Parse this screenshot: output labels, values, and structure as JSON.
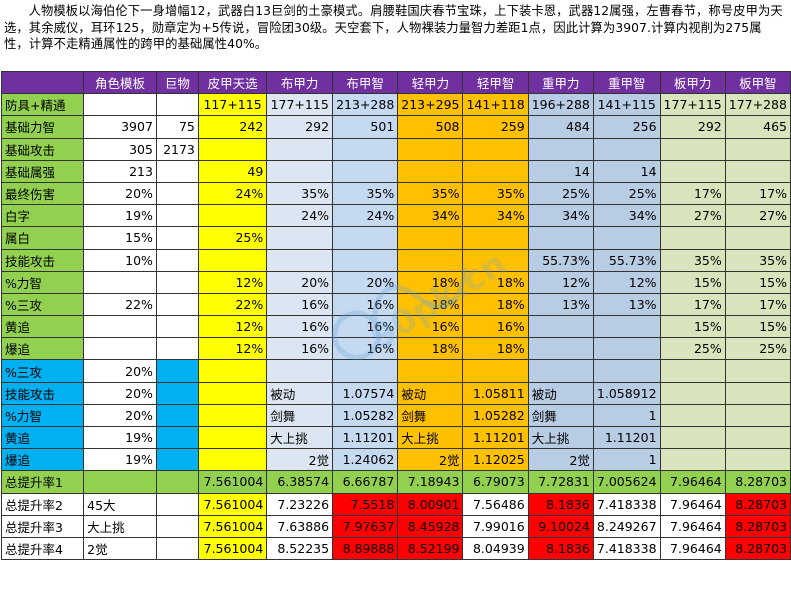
{
  "intro": "人物模板以海伯伦下一身增幅12，武器白13巨剑的土豪模式。肩腰鞋国庆春节宝珠，上下装卡恩，武器12属强，左曹春节，称号皮甲为天选，其余威仪，耳环125，勋章定为+5传说，冒险团30级。天空套下，人物裸装力量智力差距1点，因此计算为3907.计算内视削为275属性，计算不走精通属性的跨甲的基础属性40%。",
  "headers": [
    "",
    "角色模板",
    "巨物",
    "皮甲天选",
    "布甲力",
    "布甲智",
    "轻甲力",
    "轻甲智",
    "重甲力",
    "重甲智",
    "板甲力",
    "板甲智"
  ],
  "col_bgs": [
    "",
    "",
    "",
    "bg-yellow",
    "bg-lblue",
    "bg-mblue",
    "bg-orange",
    "bg-orange",
    "bg-sblue",
    "bg-sblue",
    "bg-lgreen",
    "bg-lgreen"
  ],
  "rows": [
    {
      "label": "防具+精通",
      "lbg": "bg-green",
      "cells": [
        "",
        "",
        "117+115",
        "177+115",
        "213+288",
        "213+295",
        "141+118",
        "196+288",
        "141+115",
        "177+115",
        "177+288"
      ],
      "align": "center",
      "bgs": {
        "1": "bg-white"
      }
    },
    {
      "label": "基础力智",
      "lbg": "bg-green",
      "cells": [
        "3907",
        "75",
        "242",
        "292",
        "501",
        "508",
        "259",
        "484",
        "256",
        "292",
        "465"
      ],
      "bgs": {
        "1": "bg-white"
      }
    },
    {
      "label": "基础攻击",
      "lbg": "bg-green",
      "cells": [
        "305",
        "2173",
        "",
        "",
        "",
        "",
        "",
        "",
        "",
        "",
        ""
      ],
      "bgs": {
        "1": "bg-white"
      }
    },
    {
      "label": "基础属强",
      "lbg": "bg-green",
      "cells": [
        "213",
        "",
        "49",
        "",
        "",
        "",
        "",
        "14",
        "14",
        "",
        ""
      ],
      "bgs": {
        "1": "bg-white"
      }
    },
    {
      "label": "最终伤害",
      "lbg": "bg-green",
      "cells": [
        "20%",
        "",
        "24%",
        "35%",
        "35%",
        "35%",
        "35%",
        "25%",
        "25%",
        "17%",
        "17%"
      ],
      "bgs": {
        "1": "bg-white"
      }
    },
    {
      "label": "白字",
      "lbg": "bg-green",
      "cells": [
        "19%",
        "",
        "",
        "24%",
        "24%",
        "34%",
        "34%",
        "34%",
        "34%",
        "27%",
        "27%"
      ],
      "bgs": {
        "1": "bg-white"
      }
    },
    {
      "label": "属白",
      "lbg": "bg-green",
      "cells": [
        "15%",
        "",
        "25%",
        "",
        "",
        "",
        "",
        "",
        "",
        "",
        ""
      ],
      "bgs": {
        "1": "bg-white"
      }
    },
    {
      "label": "技能攻击",
      "lbg": "bg-green",
      "cells": [
        "10%",
        "",
        "",
        "",
        "",
        "",
        "",
        "55.73%",
        "55.73%",
        "35%",
        "35%"
      ],
      "bgs": {
        "1": "bg-white"
      }
    },
    {
      "label": "%力智",
      "lbg": "bg-green",
      "cells": [
        "",
        "",
        "12%",
        "20%",
        "20%",
        "18%",
        "18%",
        "12%",
        "12%",
        "15%",
        "15%"
      ],
      "bgs": {
        "1": "bg-white"
      }
    },
    {
      "label": "%三攻",
      "lbg": "bg-green",
      "cells": [
        "22%",
        "",
        "22%",
        "16%",
        "16%",
        "18%",
        "18%",
        "13%",
        "13%",
        "17%",
        "17%"
      ],
      "bgs": {
        "1": "bg-white"
      }
    },
    {
      "label": "黄追",
      "lbg": "bg-green",
      "cells": [
        "",
        "",
        "12%",
        "16%",
        "16%",
        "16%",
        "16%",
        "",
        "",
        "15%",
        "15%"
      ],
      "bgs": {
        "1": "bg-white"
      }
    },
    {
      "label": "爆追",
      "lbg": "bg-green",
      "cells": [
        "",
        "",
        "12%",
        "16%",
        "16%",
        "18%",
        "18%",
        "",
        "",
        "25%",
        "25%"
      ],
      "bgs": {
        "1": "bg-white"
      }
    },
    {
      "label": "%三攻",
      "lbg": "bg-blue",
      "cells": [
        "20%",
        "",
        "",
        "",
        "",
        "",
        "",
        "",
        "",
        "",
        ""
      ],
      "bgs": {
        "1": "bg-white",
        "2": "bg-blue"
      }
    },
    {
      "label": "技能攻击",
      "lbg": "bg-blue",
      "cells": [
        "20%",
        "",
        "",
        "被动",
        "1.07574",
        "被动",
        "1.05811",
        "被动",
        "1.058912",
        "",
        ""
      ],
      "bgs": {
        "1": "bg-white",
        "2": "bg-blue"
      }
    },
    {
      "label": "%力智",
      "lbg": "bg-blue",
      "cells": [
        "20%",
        "",
        "",
        "剑舞",
        "1.05282",
        "剑舞",
        "1.05282",
        "剑舞",
        "1",
        "",
        ""
      ],
      "bgs": {
        "1": "bg-white",
        "2": "bg-blue"
      }
    },
    {
      "label": "黄追",
      "lbg": "bg-blue",
      "cells": [
        "19%",
        "",
        "",
        "大上挑",
        "1.11201",
        "大上挑",
        "1.11201",
        "大上挑",
        "1.11201",
        "",
        ""
      ],
      "bgs": {
        "1": "bg-white",
        "2": "bg-blue"
      }
    },
    {
      "label": "爆追",
      "lbg": "bg-blue",
      "cells": [
        "19%",
        "",
        "",
        "2觉",
        "1.24062",
        "2觉",
        "1.12025",
        "2觉",
        "1",
        "",
        ""
      ],
      "bgs": {
        "1": "bg-white",
        "2": "bg-blue"
      }
    },
    {
      "label": "总提升率1",
      "lbg": "bg-green",
      "cells": [
        "",
        "",
        "7.561004",
        "6.38574",
        "6.66787",
        "7.18943",
        "6.79073",
        "7.72831",
        "7.005624",
        "7.96464",
        "8.28703"
      ],
      "bgs": {
        "1": "bg-green",
        "2": "bg-green",
        "3": "bg-green",
        "4": "bg-green",
        "5": "bg-green",
        "6": "bg-green",
        "7": "bg-green",
        "8": "bg-green",
        "9": "bg-green",
        "10": "bg-green",
        "11": "bg-green"
      }
    },
    {
      "label": "总提升率2",
      "lbg": "bg-white",
      "cells": [
        "45大",
        "",
        "7.561004",
        "7.23226",
        "7.5518",
        "8.00901",
        "7.56486",
        "8.1836",
        "7.418338",
        "7.96464",
        "8.28703"
      ],
      "bgs": {
        "1": "bg-white",
        "2": "bg-white",
        "4": "bg-white",
        "5": "bg-red",
        "6": "bg-red",
        "7": "bg-white",
        "8": "bg-red",
        "9": "bg-white",
        "10": "bg-white",
        "11": "bg-red"
      },
      "left": {
        "1": true
      }
    },
    {
      "label": "总提升率3",
      "lbg": "bg-white",
      "cells": [
        "大上挑",
        "",
        "7.561004",
        "7.63886",
        "7.97637",
        "8.45928",
        "7.99016",
        "9.10024",
        "8.249267",
        "7.96464",
        "8.28703"
      ],
      "bgs": {
        "1": "bg-white",
        "2": "bg-white",
        "4": "bg-white",
        "5": "bg-red",
        "6": "bg-red",
        "7": "bg-white",
        "8": "bg-red",
        "9": "bg-white",
        "10": "bg-white",
        "11": "bg-red"
      },
      "left": {
        "1": true
      }
    },
    {
      "label": "总提升率4",
      "lbg": "bg-white",
      "cells": [
        "2觉",
        "",
        "7.561004",
        "8.52235",
        "8.89888",
        "8.52199",
        "8.04939",
        "8.1836",
        "7.418338",
        "7.96464",
        "8.28703"
      ],
      "bgs": {
        "1": "bg-white",
        "2": "bg-white",
        "4": "bg-white",
        "5": "bg-red",
        "6": "bg-red",
        "7": "bg-white",
        "8": "bg-red",
        "9": "bg-white",
        "10": "bg-white",
        "11": "bg-red"
      },
      "left": {
        "1": true
      }
    }
  ],
  "watermark_text": "90pk.cn"
}
